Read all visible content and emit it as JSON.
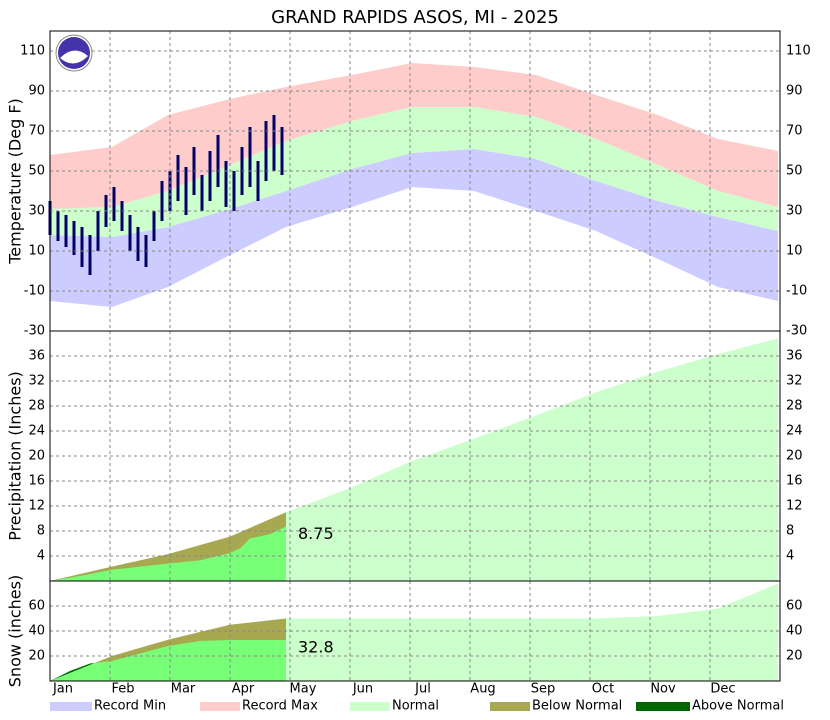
{
  "chart_data": [
    {
      "type": "band",
      "title": "GRAND RAPIDS ASOS, MI - 2025",
      "ylabel": "Temperature (Deg F)",
      "ylim": [
        -30,
        120
      ],
      "yticks": [
        -30,
        -10,
        10,
        30,
        50,
        70,
        90,
        110
      ],
      "grid": true,
      "x": [
        0,
        31,
        59,
        90,
        118,
        151,
        181,
        212,
        243,
        273,
        304,
        334,
        364
      ],
      "series": [
        {
          "name": "Record Min",
          "color": "#ccccff",
          "values": [
            -15,
            -18,
            -8,
            8,
            22,
            32,
            42,
            40,
            30,
            20,
            6,
            -8,
            -15
          ]
        },
        {
          "name": "Record Max",
          "color": "#ffcccc",
          "values": [
            58,
            62,
            78,
            86,
            92,
            98,
            104,
            102,
            98,
            88,
            78,
            66,
            60
          ]
        },
        {
          "name": "Normal",
          "color": "#ccffcc",
          "low": [
            18,
            17,
            22,
            31,
            40,
            51,
            59,
            61,
            56,
            45,
            35,
            27,
            20
          ],
          "high": [
            31,
            32,
            40,
            53,
            65,
            75,
            82,
            82,
            77,
            66,
            53,
            40,
            32
          ]
        }
      ],
      "observed": {
        "color": "#000066",
        "x": [
          0,
          4,
          8,
          12,
          16,
          20,
          24,
          28,
          32,
          36,
          40,
          44,
          48,
          52,
          56,
          60,
          64,
          68,
          72,
          76,
          80,
          84,
          88,
          92,
          96,
          100,
          104,
          108,
          112,
          116
        ],
        "high": [
          35,
          30,
          28,
          25,
          22,
          18,
          30,
          38,
          42,
          35,
          28,
          22,
          18,
          30,
          45,
          50,
          58,
          52,
          62,
          48,
          60,
          68,
          55,
          50,
          62,
          72,
          55,
          75,
          78,
          72
        ],
        "low": [
          18,
          15,
          12,
          8,
          2,
          -2,
          10,
          22,
          25,
          20,
          10,
          5,
          2,
          15,
          25,
          30,
          35,
          28,
          38,
          30,
          35,
          42,
          32,
          30,
          38,
          42,
          35,
          45,
          50,
          48
        ]
      }
    },
    {
      "type": "cumulative",
      "ylabel": "Precipitation (Inches)",
      "ylim": [
        0,
        40
      ],
      "yticks": [
        4,
        8,
        12,
        16,
        20,
        24,
        28,
        32,
        36
      ],
      "grid": true,
      "series": [
        {
          "color": "#ccffcc",
          "x": [
            0,
            31,
            59,
            90,
            118,
            151,
            181,
            212,
            243,
            273,
            304,
            334,
            364
          ],
          "values": [
            0,
            2.3,
            4.3,
            7.1,
            11,
            15,
            19.2,
            22.8,
            26.5,
            30.2,
            33.5,
            36.3,
            38.8
          ]
        },
        {
          "color": "#77ff77",
          "x": [
            0,
            15,
            31,
            45,
            59,
            75,
            90,
            95,
            100,
            110,
            118
          ],
          "values": [
            0,
            0.8,
            1.8,
            2.3,
            2.8,
            3.3,
            4.5,
            5.2,
            6.8,
            7.5,
            8.75
          ]
        }
      ],
      "fills": [
        {
          "name": "Below Normal",
          "color": "#a8a850"
        },
        {
          "name": "Above Normal",
          "color": "#006600"
        }
      ]
    },
    {
      "type": "cumulative",
      "ylabel": "Snow (inches)",
      "ylim": [
        0,
        80
      ],
      "yticks": [
        20,
        40,
        60
      ],
      "grid": true,
      "xlim": [
        0,
        365
      ],
      "xticks": [
        {
          "value": 0,
          "label": "Jan"
        },
        {
          "value": 30,
          "label": "Feb"
        },
        {
          "value": 60,
          "label": "Mar"
        },
        {
          "value": 90,
          "label": "Apr"
        },
        {
          "value": 120,
          "label": "May"
        },
        {
          "value": 150,
          "label": "Jun"
        },
        {
          "value": 180,
          "label": "Jul"
        },
        {
          "value": 210,
          "label": "Aug"
        },
        {
          "value": 240,
          "label": "Sep"
        },
        {
          "value": 270,
          "label": "Oct"
        },
        {
          "value": 300,
          "label": "Nov"
        },
        {
          "value": 330,
          "label": "Dec"
        }
      ],
      "series": [
        {
          "color": "#ccffcc",
          "x": [
            0,
            31,
            59,
            90,
            118,
            151,
            181,
            212,
            243,
            273,
            304,
            334,
            364
          ],
          "values": [
            0,
            20,
            33,
            45,
            50,
            50,
            50,
            50,
            50,
            50,
            52,
            58,
            78
          ]
        },
        {
          "color": "#77ff77",
          "x": [
            0,
            10,
            20,
            31,
            45,
            59,
            75,
            90,
            118
          ],
          "values": [
            0,
            8,
            14,
            16,
            22,
            28,
            32,
            32.8,
            32.8
          ]
        }
      ]
    }
  ]
}
